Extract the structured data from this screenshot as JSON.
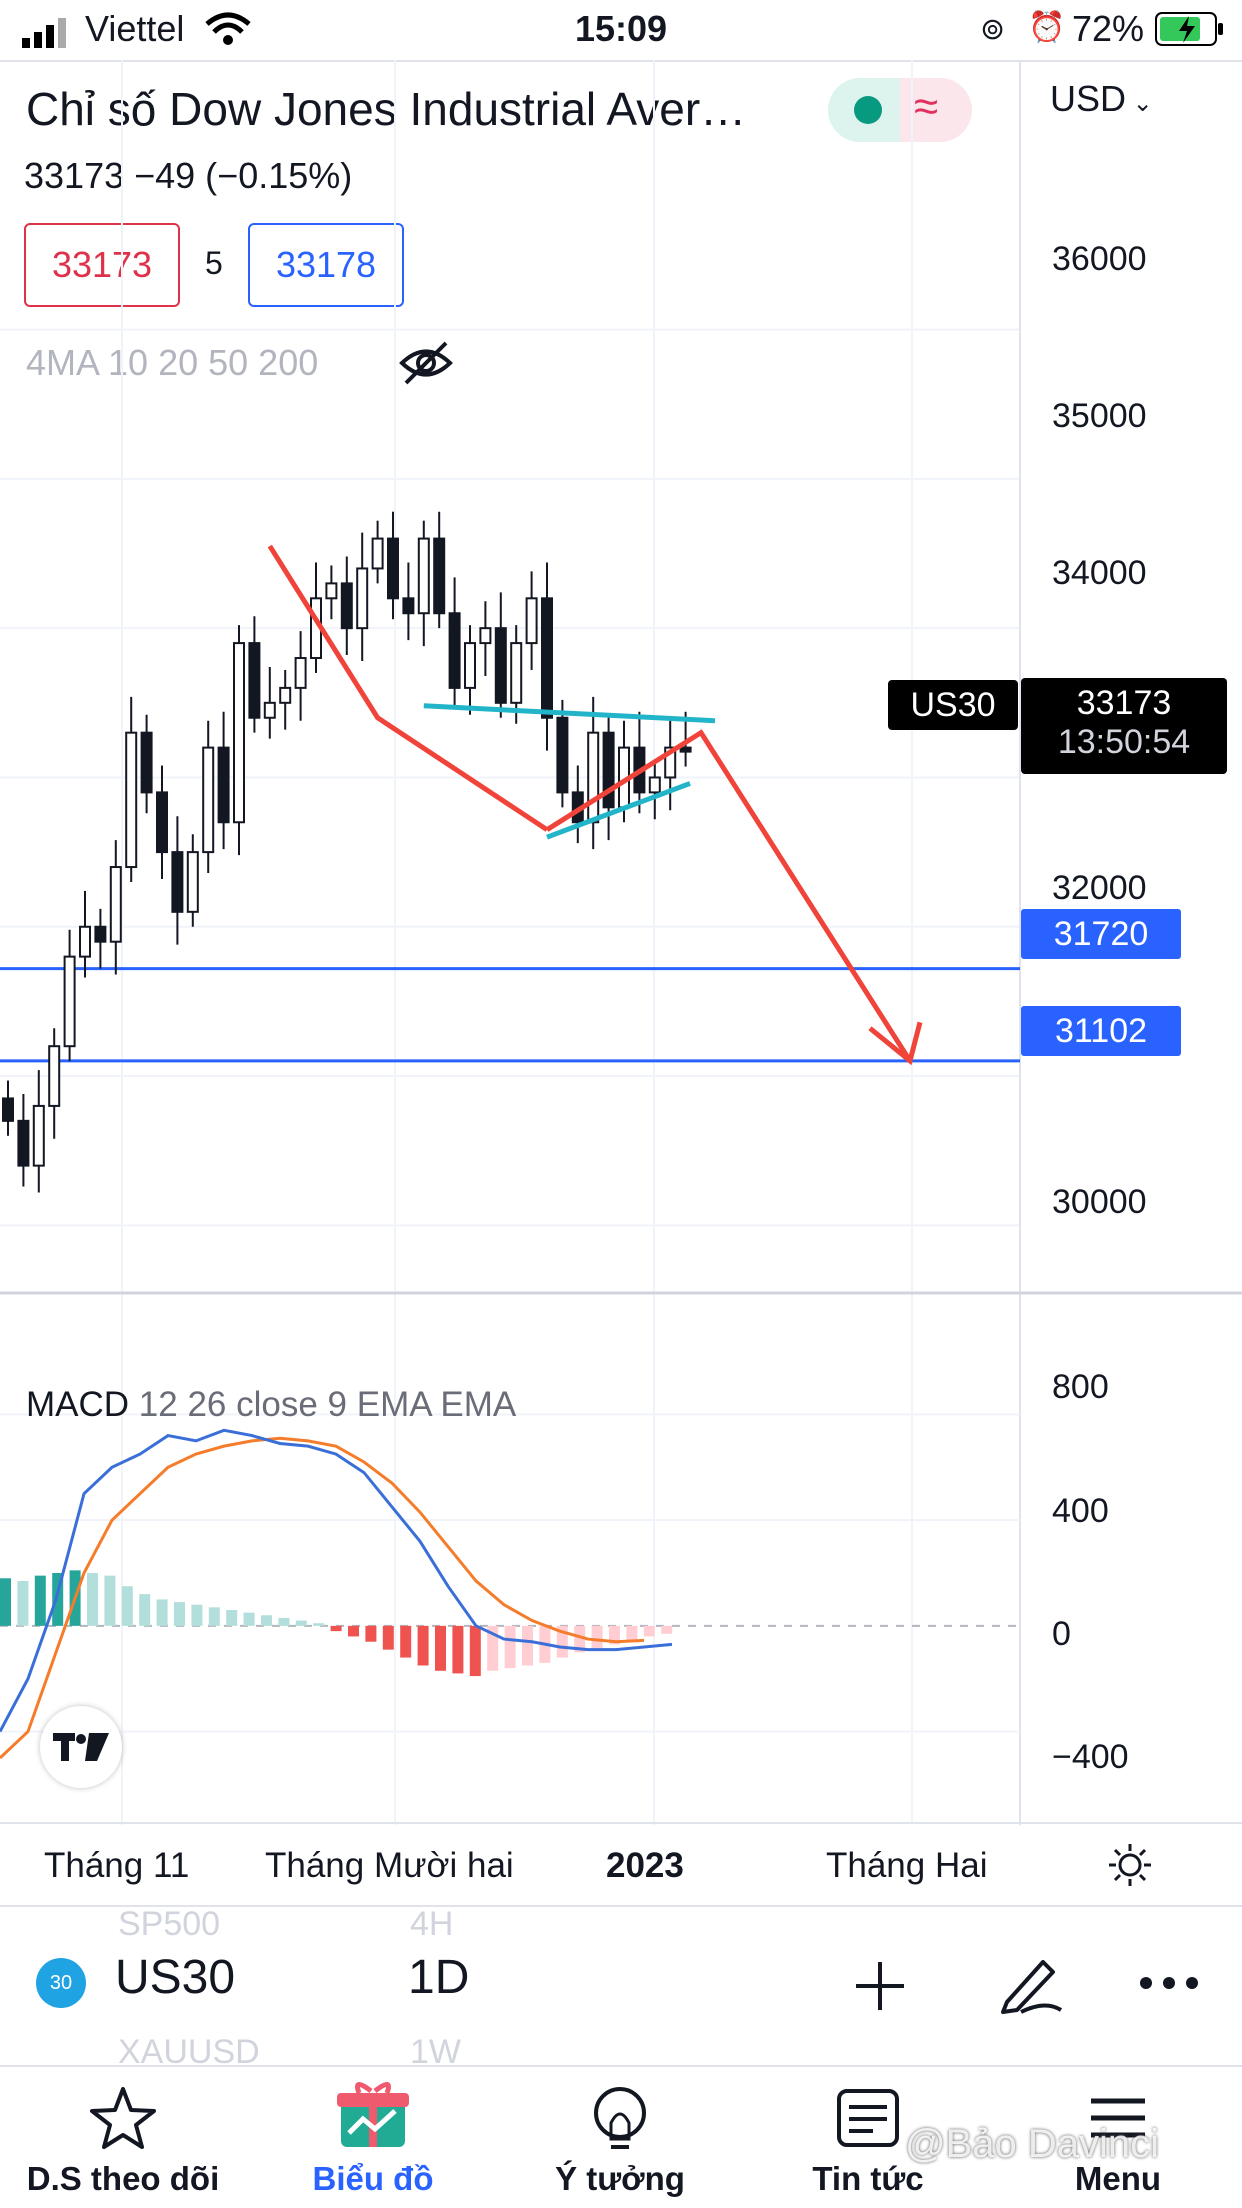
{
  "status_bar": {
    "carrier": "Viettel",
    "time": "15:09",
    "battery": "72%"
  },
  "header": {
    "title": "Chỉ số Dow Jones Industrial Aver…",
    "quote": "33173  −49 (−0.15%)",
    "sell_price": "33173",
    "spread": "5",
    "buy_price": "33178",
    "indicator": "4MA 10 20 50 200",
    "currency": "USD"
  },
  "price_axis": [
    "36000",
    "35000",
    "34000",
    "32000",
    "30000"
  ],
  "price_tags": {
    "symbol": "US30",
    "last_price": "33173",
    "countdown": "13:50:54",
    "level_1": "31720",
    "level_2": "31102"
  },
  "macd": {
    "label": "MACD",
    "params": "12 26 close 9 EMA EMA",
    "axis": [
      "800",
      "400",
      "0",
      "−400"
    ]
  },
  "time_axis": [
    "Tháng 11",
    "Tháng Mười hai",
    "2023",
    "Tháng Hai"
  ],
  "symbol_bar": {
    "symbol": "US30",
    "badge": "30",
    "interval": "1D",
    "prev_symbol": "SP500",
    "prev_interval": "4H",
    "next_symbol": "XAUUSD",
    "next_interval": "1W"
  },
  "bottom_nav": [
    {
      "label": "D.S theo dõi",
      "icon": "star-icon"
    },
    {
      "label": "Biểu đồ",
      "icon": "chart-icon"
    },
    {
      "label": "Ý tưởng",
      "icon": "lightbulb-icon"
    },
    {
      "label": "Tin tức",
      "icon": "news-icon"
    },
    {
      "label": "Menu",
      "icon": "menu-icon"
    }
  ],
  "watermark": "@Bảo Davinci",
  "colors": {
    "accent": "#2962ff",
    "sell": "#e0314b",
    "arrow": "#f0443a",
    "triangle": "#22b5c9",
    "macd_line": "#3b6fd8",
    "signal_line": "#f57c2a"
  },
  "chart_data": {
    "type": "candlestick",
    "symbol": "US30",
    "interval": "1D",
    "ylim": [
      29500,
      36600
    ],
    "horizontal_levels": [
      31720,
      31102
    ],
    "candles_close": [
      30700,
      30400,
      30800,
      31200,
      31800,
      32000,
      31900,
      32400,
      33300,
      32900,
      32500,
      32100,
      32500,
      33200,
      32700,
      33900,
      33400,
      33500,
      33600,
      33800,
      34200,
      34300,
      34000,
      34400,
      34600,
      34200,
      34100,
      34600,
      34100,
      33600,
      33900,
      34000,
      33500,
      33900,
      34200,
      33400,
      32900,
      32700,
      33300,
      32800,
      33200,
      32900,
      33000,
      33200,
      33173
    ],
    "macd": {
      "ylim": [
        -500,
        900
      ],
      "histogram": [
        180,
        170,
        190,
        200,
        210,
        200,
        190,
        150,
        120,
        100,
        90,
        80,
        70,
        60,
        50,
        40,
        30,
        20,
        10,
        -20,
        -40,
        -60,
        -90,
        -120,
        -150,
        -170,
        -180,
        -190,
        -170,
        -160,
        -150,
        -140,
        -120,
        -100,
        -90,
        -70,
        -60,
        -40,
        -30
      ],
      "macd_line": [
        -400,
        -200,
        100,
        500,
        600,
        650,
        720,
        700,
        740,
        720,
        690,
        680,
        650,
        580,
        450,
        320,
        150,
        0,
        -50,
        -60,
        -80,
        -90,
        -90,
        -80,
        -70
      ],
      "signal_line": [
        -500,
        -400,
        -100,
        200,
        400,
        500,
        600,
        650,
        680,
        700,
        710,
        700,
        680,
        620,
        540,
        430,
        300,
        170,
        80,
        20,
        -20,
        -50,
        -60,
        -55
      ]
    }
  }
}
